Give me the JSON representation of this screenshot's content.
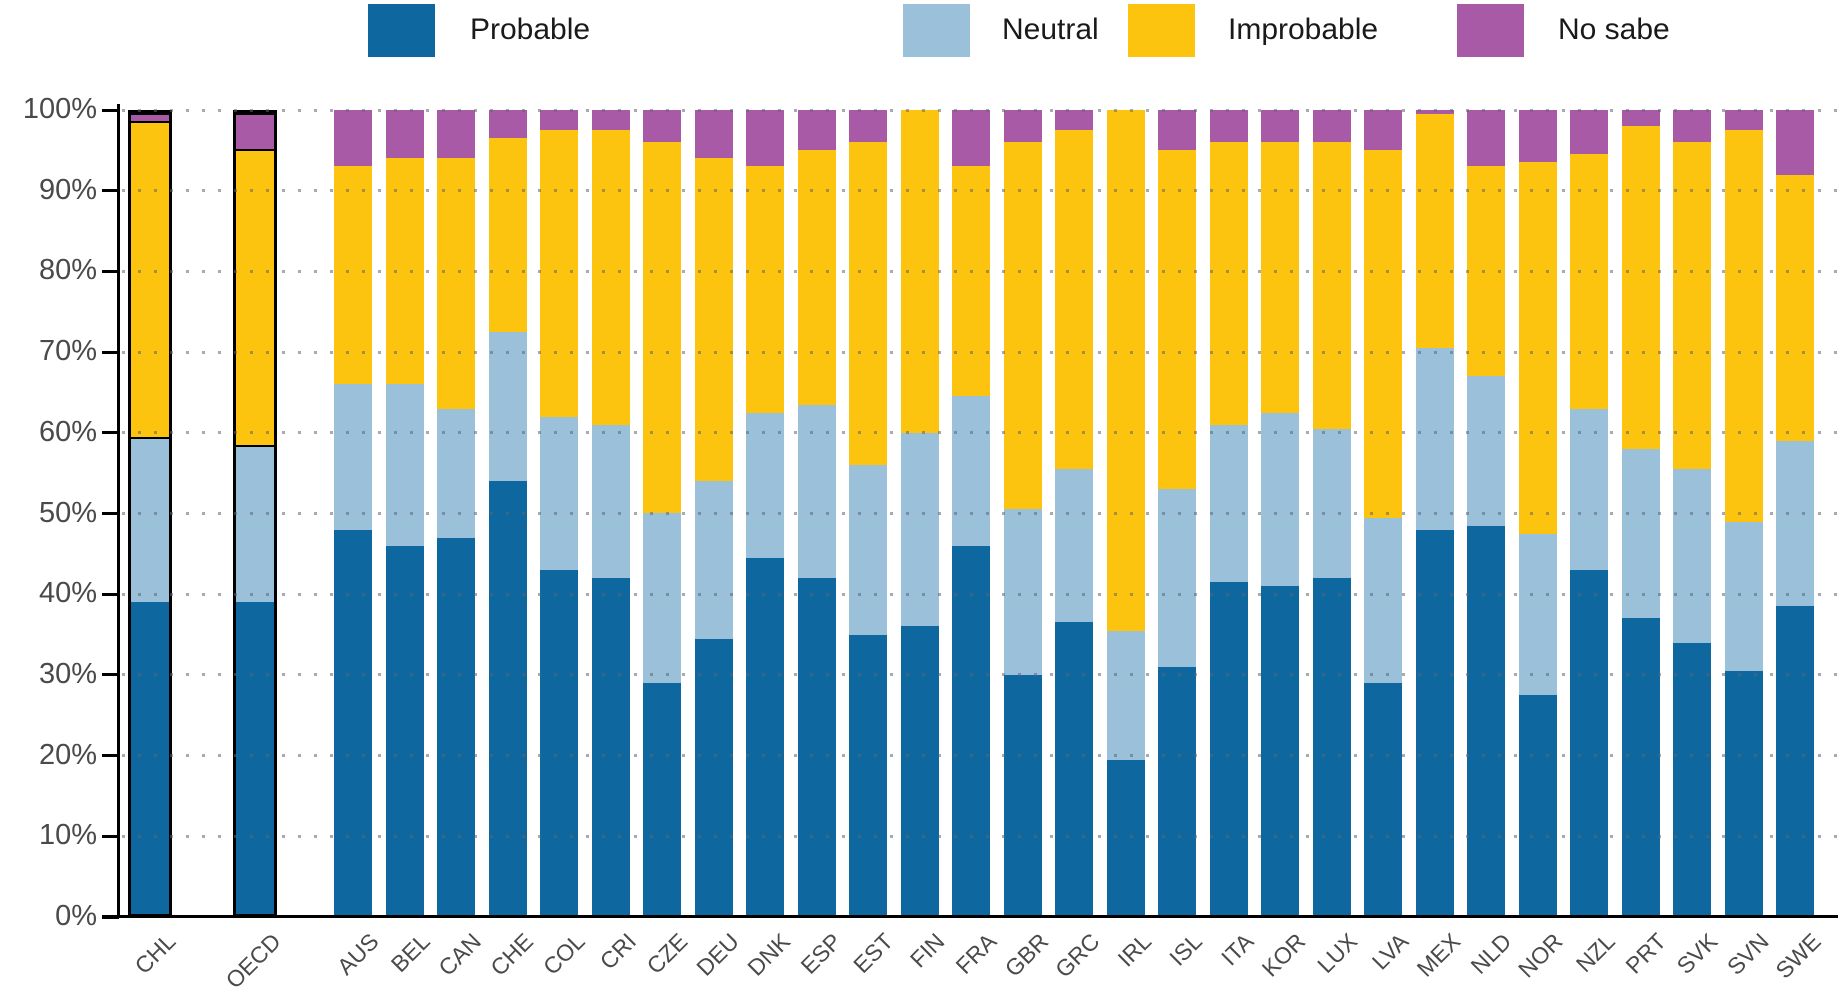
{
  "legend": {
    "items": [
      {
        "label": "Probable",
        "color": "#0e679f"
      },
      {
        "label": "Neutral",
        "color": "#9bc0d9"
      },
      {
        "label": "Improbable",
        "color": "#fdc40f"
      },
      {
        "label": "No sabe",
        "color": "#a85aa6"
      }
    ]
  },
  "y_axis": {
    "tick_labels": [
      "100%",
      "90%",
      "80%",
      "70%",
      "60%",
      "50%",
      "40%",
      "30%",
      "20%",
      "10%",
      "0%"
    ]
  },
  "chart_data": {
    "type": "bar",
    "stacked": true,
    "unit": "percent",
    "title": "",
    "xlabel": "",
    "ylabel": "",
    "ylim": [
      0,
      100
    ],
    "grid": "dotted horizontal lines every 10%",
    "legend_position": "top",
    "highlighted_categories": [
      "CHL",
      "OECD"
    ],
    "categories": [
      "CHL",
      "OECD",
      "AUS",
      "BEL",
      "CAN",
      "CHE",
      "COL",
      "CRI",
      "CZE",
      "DEU",
      "DNK",
      "ESP",
      "EST",
      "FIN",
      "FRA",
      "GBR",
      "GRC",
      "IRL",
      "ISL",
      "ITA",
      "KOR",
      "LUX",
      "LVA",
      "MEX",
      "NLD",
      "NOR",
      "NZL",
      "PRT",
      "SVK",
      "SVN",
      "SWE"
    ],
    "series": [
      {
        "name": "Probable",
        "color": "#0e679f",
        "values": [
          39,
          39,
          48,
          46,
          47,
          54,
          43,
          42,
          29,
          34.5,
          44.5,
          42,
          35,
          36,
          46,
          30,
          36.5,
          19.5,
          31,
          41.5,
          41,
          42,
          29,
          48,
          48.5,
          27.5,
          43,
          37,
          34,
          30.5,
          38.5
        ]
      },
      {
        "name": "Neutral",
        "color": "#9bc0d9",
        "values": [
          20.5,
          19.5,
          18,
          20,
          16,
          18.5,
          19,
          19,
          21,
          19.5,
          18,
          21.5,
          21,
          24,
          18.5,
          20.5,
          19,
          16,
          22,
          19.5,
          21.5,
          18.5,
          20.5,
          22.5,
          18.5,
          20,
          20,
          21,
          21.5,
          18.5,
          20.5
        ]
      },
      {
        "name": "Improbable",
        "color": "#fdc40f",
        "values": [
          39.5,
          37,
          27,
          28,
          31,
          24,
          35.5,
          36.5,
          46,
          40,
          30.5,
          31.5,
          40,
          40,
          28.5,
          45.5,
          42,
          64.5,
          42,
          35,
          33.5,
          35.5,
          45.5,
          29,
          26,
          46,
          31.5,
          40,
          40.5,
          48.5,
          33
        ]
      },
      {
        "name": "No sabe",
        "color": "#a85aa6",
        "values": [
          1,
          4.5,
          7,
          6,
          6,
          3.5,
          2.5,
          2.5,
          4,
          6,
          7,
          5,
          4,
          0,
          7,
          4,
          2.5,
          0,
          5,
          4,
          4,
          4,
          5,
          0.5,
          7,
          6.5,
          5.5,
          2,
          4,
          2.5,
          8
        ]
      }
    ]
  }
}
